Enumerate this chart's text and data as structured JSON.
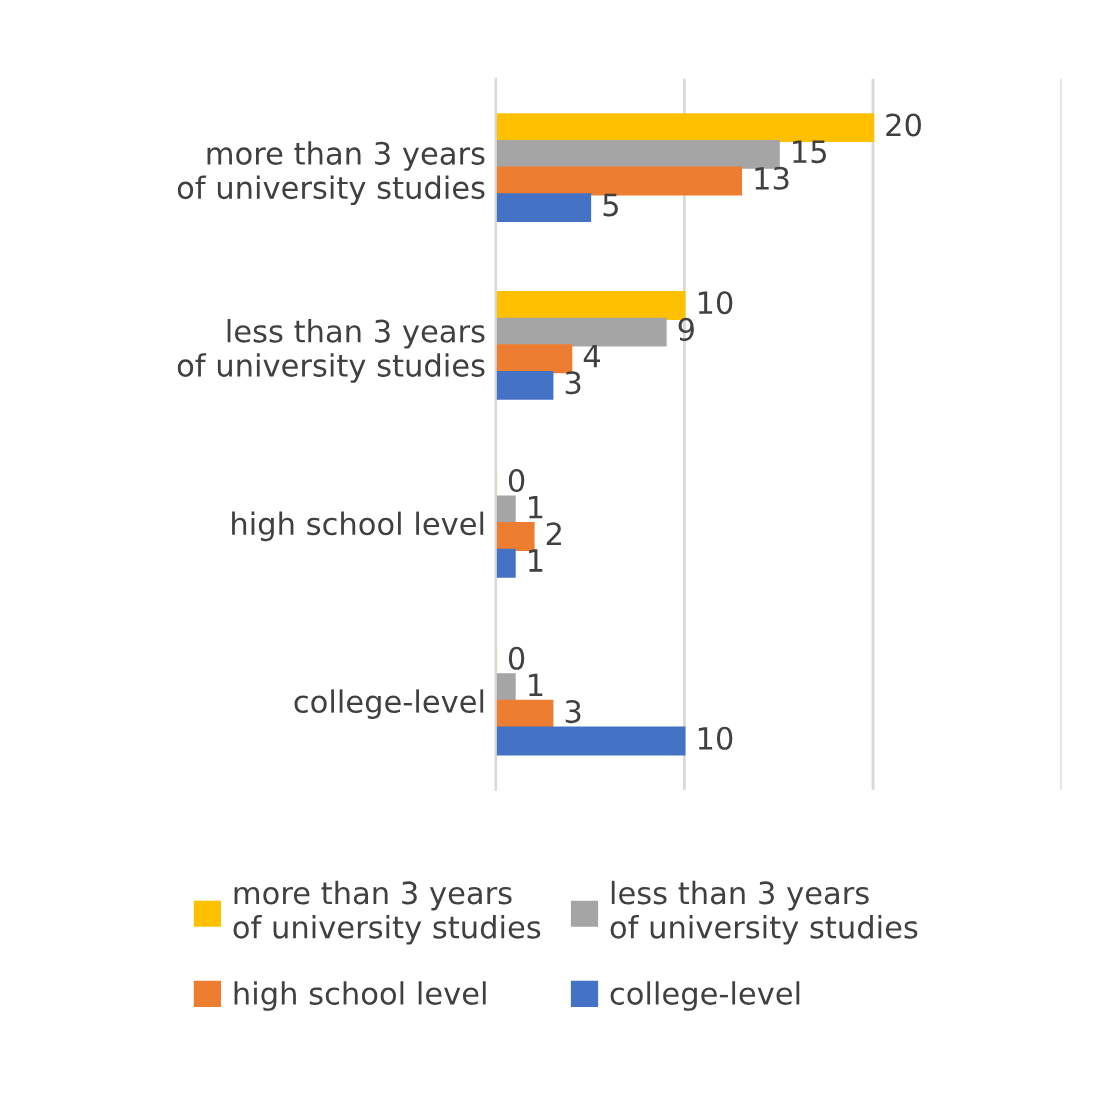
{
  "chart_data": {
    "type": "bar",
    "orientation": "horizontal",
    "categories": [
      "more than 3 years\nof university studies",
      "less than 3 years\nof university studies",
      "high school level",
      "college-level"
    ],
    "series": [
      {
        "name": "more than 3 years\nof university studies",
        "color": "#ffc000",
        "values": [
          20,
          10,
          0,
          0
        ]
      },
      {
        "name": "less than 3 years\nof university studies",
        "color": "#a5a5a5",
        "values": [
          15,
          9,
          1,
          1
        ]
      },
      {
        "name": "high school level",
        "color": "#ed7d31",
        "values": [
          13,
          4,
          2,
          3
        ]
      },
      {
        "name": "college-level",
        "color": "#4472c4",
        "values": [
          5,
          3,
          1,
          10
        ]
      }
    ],
    "xlim": [
      0,
      30
    ],
    "xticks": [
      {
        "value": 0,
        "label": null
      },
      {
        "value": 10,
        "label": null
      },
      {
        "value": 20,
        "label": null
      },
      {
        "value": 30,
        "label": null
      }
    ],
    "tick_labels": "y",
    "grid": "x",
    "data_labels": true,
    "legend": "bottom"
  }
}
